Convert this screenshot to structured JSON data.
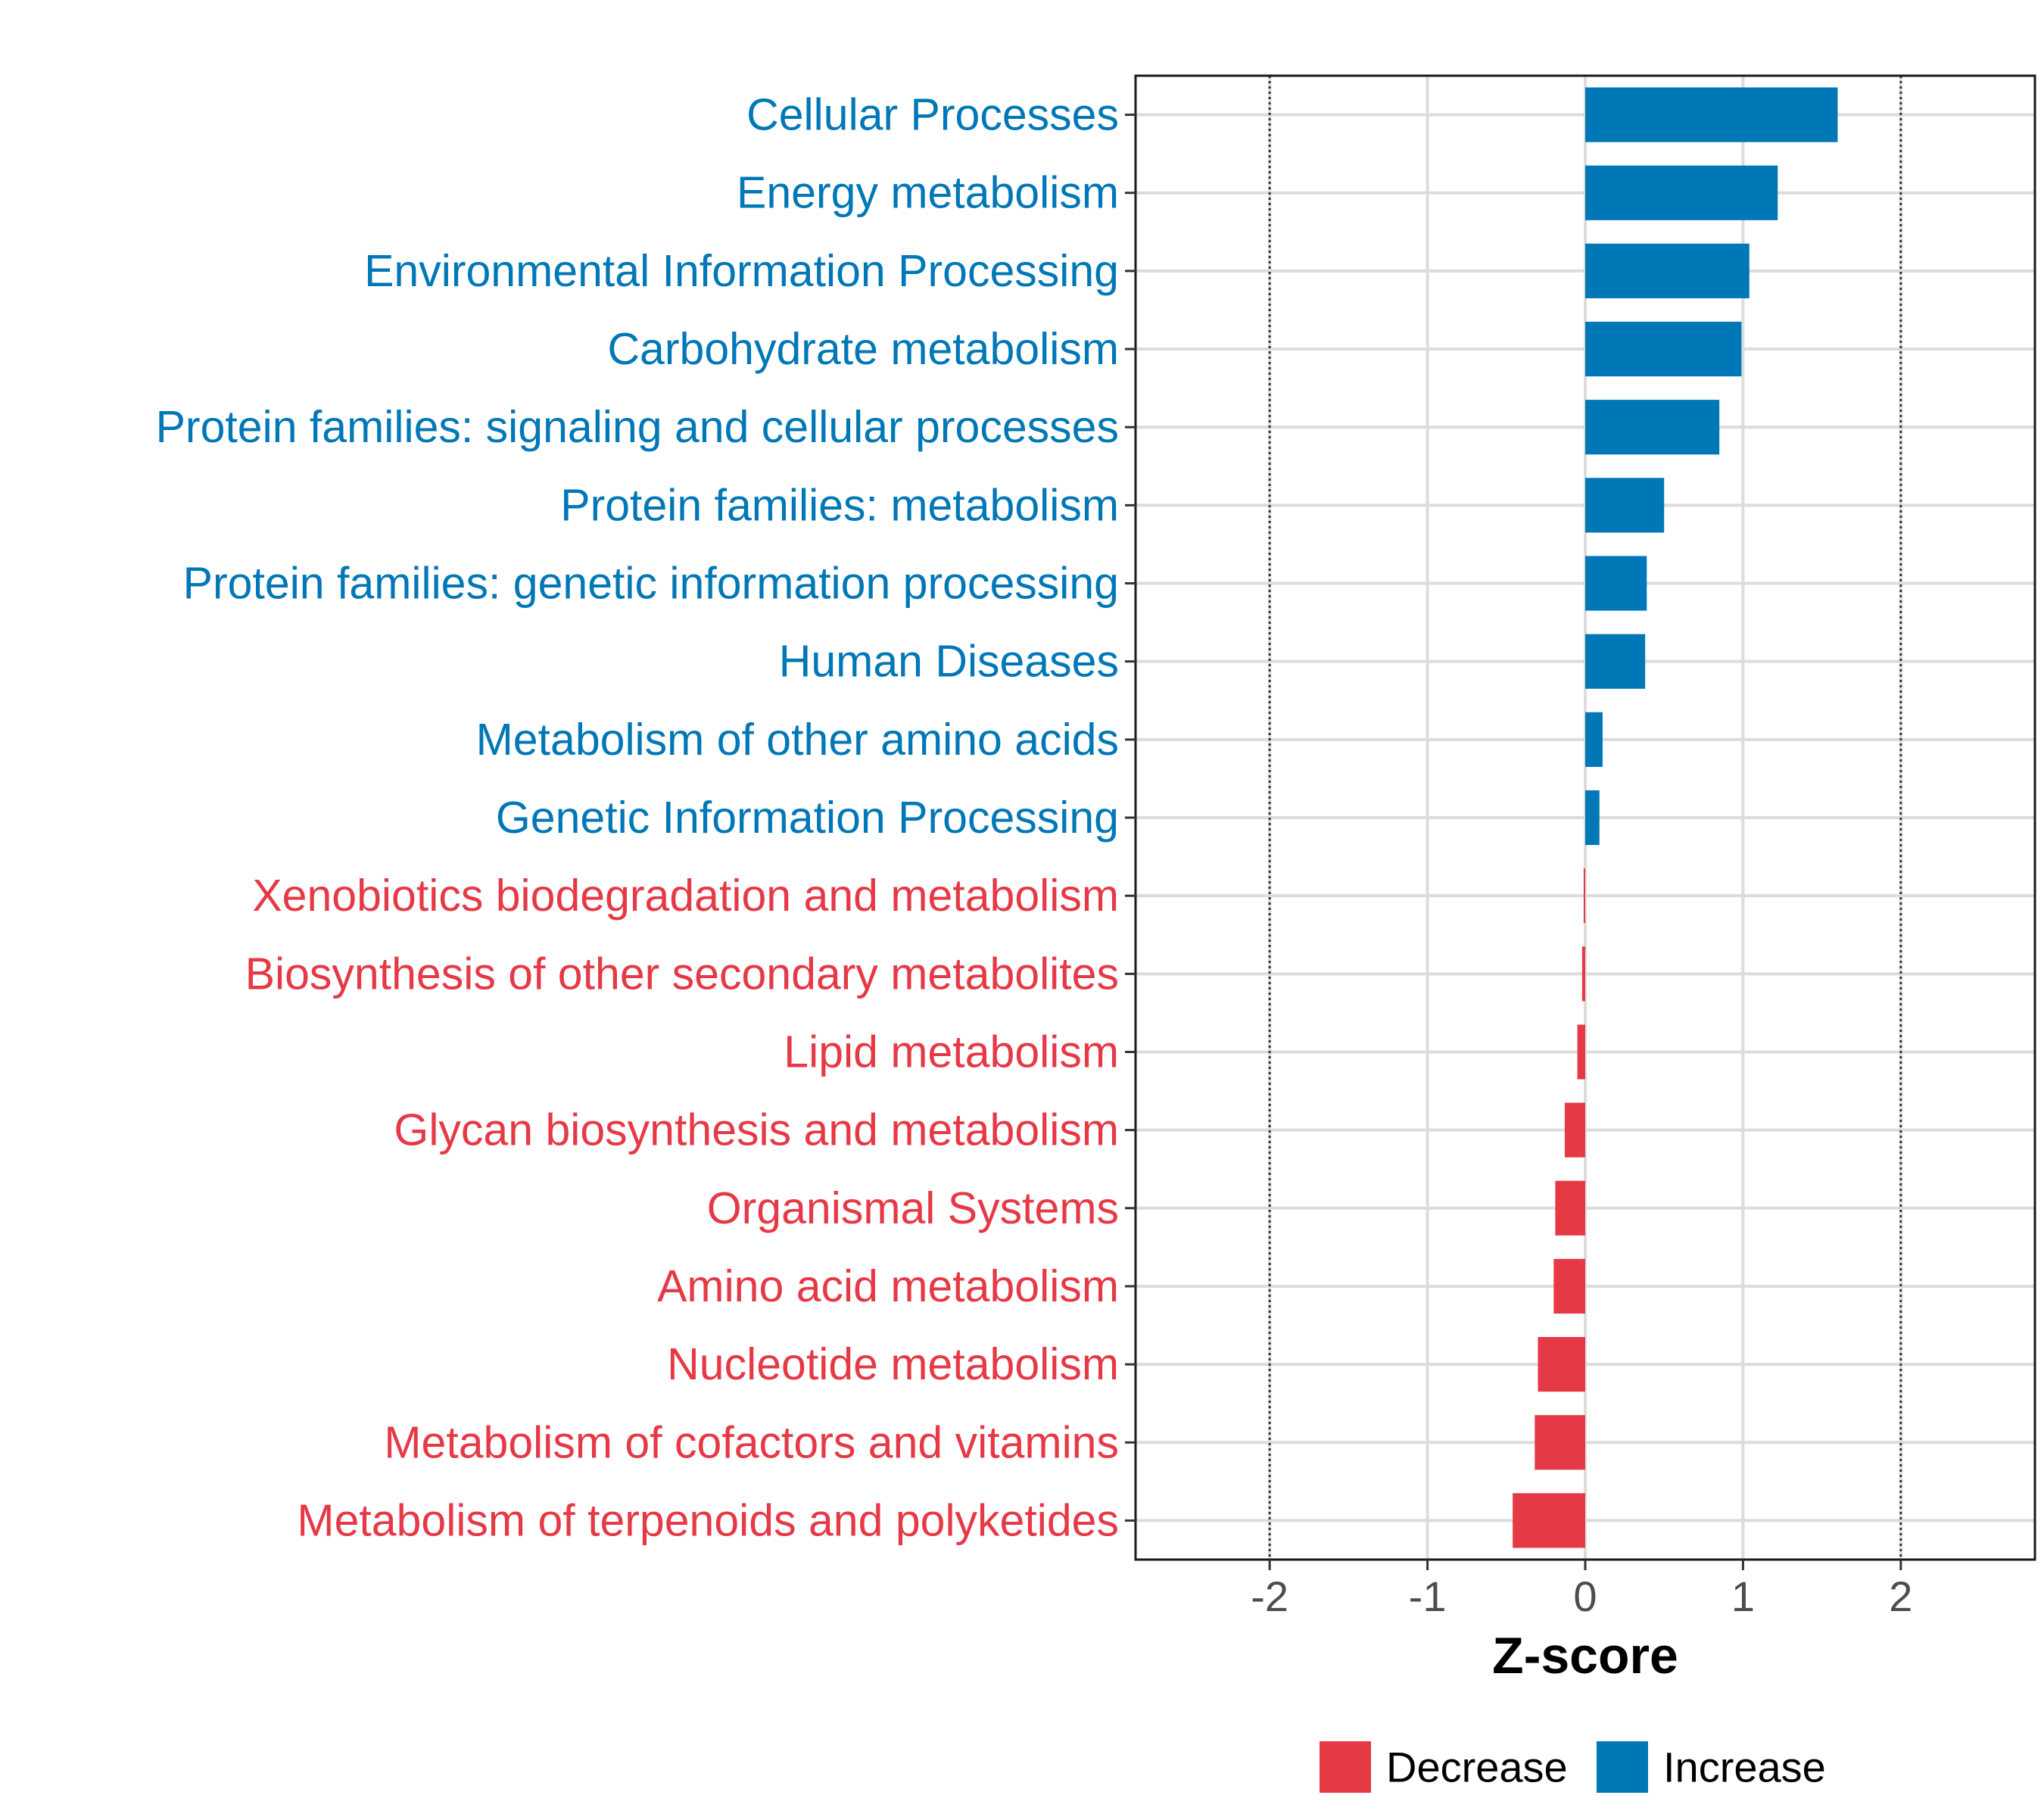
{
  "chart_data": {
    "type": "bar",
    "orientation": "horizontal",
    "title": "",
    "xlabel": "Z-score",
    "ylabel": "",
    "xlim": [
      -2.85,
      2.85
    ],
    "xticks": [
      -2,
      -1,
      0,
      1,
      2
    ],
    "xtick_labels": [
      "-2",
      "-1",
      "0",
      "1",
      "2"
    ],
    "reference_lines": [
      -2,
      2
    ],
    "grid": true,
    "categories": [
      "Cellular Processes",
      "Energy metabolism",
      "Environmental Information Processing",
      "Carbohydrate metabolism",
      "Protein families: signaling and cellular processes",
      "Protein families: metabolism",
      "Protein families: genetic information processing",
      "Human Diseases",
      "Metabolism of other amino acids",
      "Genetic Information Processing",
      "Xenobiotics biodegradation and metabolism",
      "Biosynthesis of other secondary metabolites",
      "Lipid metabolism",
      "Glycan biosynthesis and metabolism",
      "Organismal Systems",
      "Amino acid metabolism",
      "Nucleotide metabolism",
      "Metabolism of cofactors and vitamins",
      "Metabolism of terpenoids and polyketides"
    ],
    "values": [
      1.6,
      1.22,
      1.04,
      0.99,
      0.85,
      0.5,
      0.39,
      0.38,
      0.11,
      0.09,
      -0.01,
      -0.02,
      -0.05,
      -0.13,
      -0.19,
      -0.2,
      -0.3,
      -0.32,
      -0.46
    ],
    "groups": [
      "Increase",
      "Increase",
      "Increase",
      "Increase",
      "Increase",
      "Increase",
      "Increase",
      "Increase",
      "Increase",
      "Increase",
      "Decrease",
      "Decrease",
      "Decrease",
      "Decrease",
      "Decrease",
      "Decrease",
      "Decrease",
      "Decrease",
      "Decrease"
    ],
    "legend": {
      "position": "bottom",
      "entries": [
        {
          "name": "Decrease",
          "color": "#E63946"
        },
        {
          "name": "Increase",
          "color": "#0077B6"
        }
      ]
    },
    "colors": {
      "Decrease": "#E63946",
      "Increase": "#0077B6"
    }
  }
}
